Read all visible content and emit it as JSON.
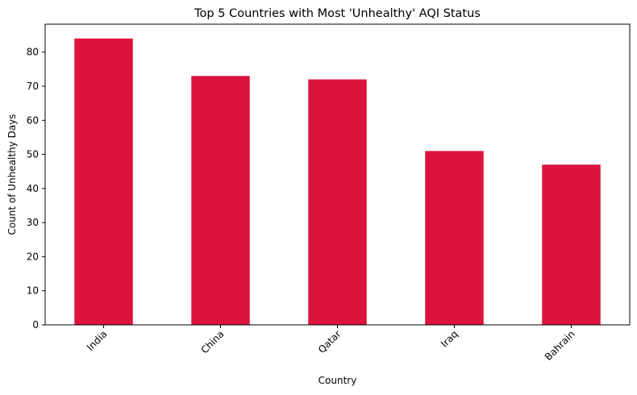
{
  "chart_data": {
    "type": "bar",
    "title": "Top 5 Countries with Most 'Unhealthy' AQI Status",
    "xlabel": "Country",
    "ylabel": "Count of Unhealthy Days",
    "categories": [
      "India",
      "China",
      "Qatar",
      "Iraq",
      "Bahrain"
    ],
    "values": [
      84,
      73,
      72,
      51,
      47
    ],
    "yticks": [
      0,
      10,
      20,
      30,
      40,
      50,
      60,
      70,
      80
    ],
    "ylim": [
      0,
      88.2
    ],
    "bar_color": "#dc143c",
    "grid": false,
    "legend": "none",
    "xtick_rotation_deg": 45
  }
}
